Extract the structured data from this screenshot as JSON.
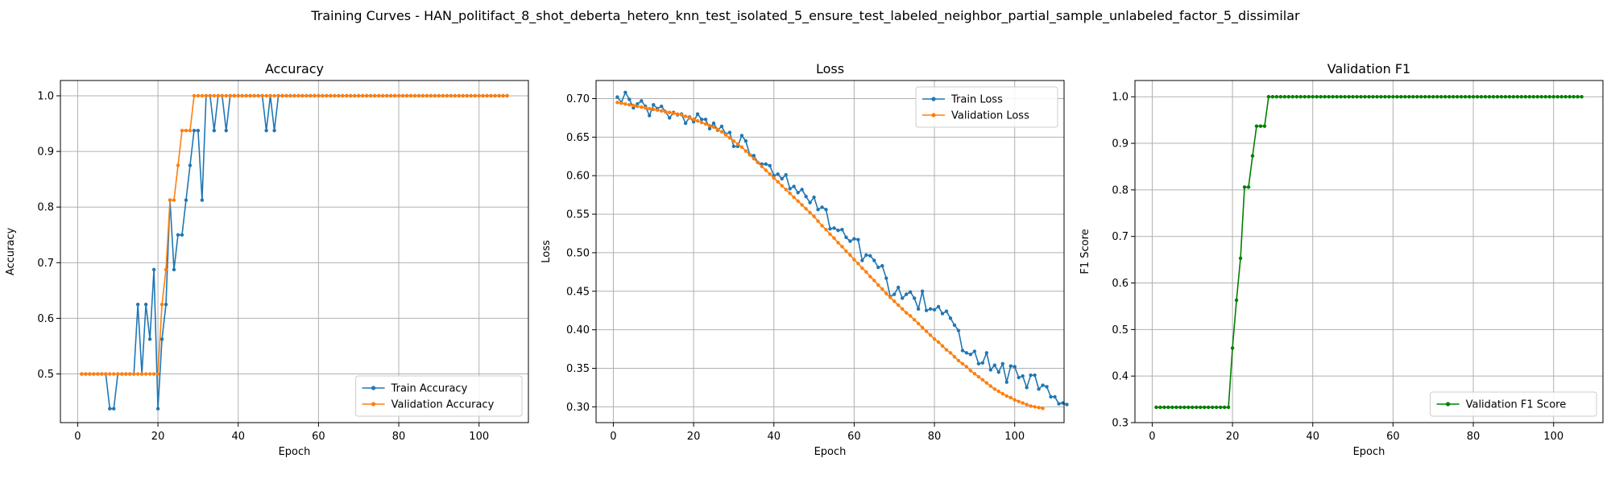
{
  "suptitle": "Training Curves - HAN_politifact_8_shot_deberta_hetero_knn_test_isolated_5_ensure_test_labeled_neighbor_partial_sample_unlabeled_factor_5_dissimilar",
  "colors": {
    "blue": "#1f77b4",
    "orange": "#ff7f0e",
    "green": "#008000",
    "grid": "#b0b0b0"
  },
  "chart_data": [
    {
      "type": "line",
      "title": "Accuracy",
      "xlabel": "Epoch",
      "ylabel": "Accuracy",
      "xlim": [
        -4.3,
        112.3
      ],
      "ylim": [
        0.4125,
        1.0275
      ],
      "xticks": [
        0,
        20,
        40,
        60,
        80,
        100
      ],
      "yticks": [
        0.5,
        0.6,
        0.7,
        0.8,
        0.9,
        1.0
      ],
      "ytick_labels": [
        "0.5",
        "0.6",
        "0.7",
        "0.8",
        "0.9",
        "1.0"
      ],
      "grid": true,
      "legend_position": "lower-right",
      "series": [
        {
          "name": "Train Accuracy",
          "color": "#1f77b4",
          "x_start": 1,
          "y": [
            0.5,
            0.5,
            0.5,
            0.5,
            0.5,
            0.5,
            0.5,
            0.4375,
            0.4375,
            0.5,
            0.5,
            0.5,
            0.5,
            0.5,
            0.625,
            0.5,
            0.625,
            0.5625,
            0.6875,
            0.4375,
            0.5625,
            0.625,
            0.8125,
            0.6875,
            0.75,
            0.75,
            0.8125,
            0.875,
            0.9375,
            0.9375,
            0.8125,
            1.0,
            1.0,
            0.9375,
            1.0,
            1.0,
            0.9375,
            1.0,
            1.0,
            1.0,
            1.0,
            1.0,
            1.0,
            1.0,
            1.0,
            1.0,
            0.9375,
            1.0,
            0.9375,
            1.0,
            1.0,
            1.0,
            1.0,
            1.0,
            1.0,
            1.0,
            1.0,
            1.0,
            1.0,
            1.0,
            1.0,
            1.0,
            1.0,
            1.0,
            1.0,
            1.0,
            1.0,
            1.0,
            1.0,
            1.0,
            1.0,
            1.0,
            1.0,
            1.0,
            1.0,
            1.0,
            1.0,
            1.0,
            1.0,
            1.0,
            1.0,
            1.0,
            1.0,
            1.0,
            1.0,
            1.0,
            1.0,
            1.0,
            1.0,
            1.0,
            1.0,
            1.0,
            1.0,
            1.0,
            1.0,
            1.0,
            1.0,
            1.0,
            1.0,
            1.0,
            1.0,
            1.0,
            1.0,
            1.0,
            1.0,
            1.0,
            1.0
          ]
        },
        {
          "name": "Validation Accuracy",
          "color": "#ff7f0e",
          "x_start": 1,
          "y": [
            0.5,
            0.5,
            0.5,
            0.5,
            0.5,
            0.5,
            0.5,
            0.5,
            0.5,
            0.5,
            0.5,
            0.5,
            0.5,
            0.5,
            0.5,
            0.5,
            0.5,
            0.5,
            0.5,
            0.5,
            0.625,
            0.6875,
            0.8125,
            0.8125,
            0.875,
            0.9375,
            0.9375,
            0.9375,
            1.0,
            1.0,
            1.0,
            1.0,
            1.0,
            1.0,
            1.0,
            1.0,
            1.0,
            1.0,
            1.0,
            1.0,
            1.0,
            1.0,
            1.0,
            1.0,
            1.0,
            1.0,
            1.0,
            1.0,
            1.0,
            1.0,
            1.0,
            1.0,
            1.0,
            1.0,
            1.0,
            1.0,
            1.0,
            1.0,
            1.0,
            1.0,
            1.0,
            1.0,
            1.0,
            1.0,
            1.0,
            1.0,
            1.0,
            1.0,
            1.0,
            1.0,
            1.0,
            1.0,
            1.0,
            1.0,
            1.0,
            1.0,
            1.0,
            1.0,
            1.0,
            1.0,
            1.0,
            1.0,
            1.0,
            1.0,
            1.0,
            1.0,
            1.0,
            1.0,
            1.0,
            1.0,
            1.0,
            1.0,
            1.0,
            1.0,
            1.0,
            1.0,
            1.0,
            1.0,
            1.0,
            1.0,
            1.0,
            1.0,
            1.0,
            1.0,
            1.0,
            1.0,
            1.0
          ]
        }
      ]
    },
    {
      "type": "line",
      "title": "Loss",
      "xlabel": "Epoch",
      "ylabel": "Loss",
      "xlim": [
        -4.3,
        112.3
      ],
      "ylim": [
        0.2795,
        0.7235
      ],
      "xticks": [
        0,
        20,
        40,
        60,
        80,
        100
      ],
      "yticks": [
        0.3,
        0.35,
        0.4,
        0.45,
        0.5,
        0.55,
        0.6,
        0.65,
        0.7
      ],
      "ytick_labels": [
        "0.30",
        "0.35",
        "0.40",
        "0.45",
        "0.50",
        "0.55",
        "0.60",
        "0.65",
        "0.70"
      ],
      "grid": true,
      "legend_position": "upper-right",
      "series": [
        {
          "name": "Train Loss",
          "color": "#1f77b4",
          "x_start": 1,
          "y": [
            0.702,
            0.695,
            0.708,
            0.699,
            0.688,
            0.693,
            0.697,
            0.69,
            0.678,
            0.692,
            0.687,
            0.69,
            0.683,
            0.675,
            0.682,
            0.679,
            0.68,
            0.668,
            0.676,
            0.67,
            0.68,
            0.673,
            0.673,
            0.661,
            0.668,
            0.659,
            0.664,
            0.654,
            0.656,
            0.638,
            0.638,
            0.652,
            0.645,
            0.627,
            0.626,
            0.617,
            0.615,
            0.615,
            0.613,
            0.6,
            0.602,
            0.596,
            0.601,
            0.583,
            0.586,
            0.578,
            0.582,
            0.573,
            0.565,
            0.572,
            0.556,
            0.559,
            0.556,
            0.531,
            0.532,
            0.529,
            0.53,
            0.52,
            0.515,
            0.518,
            0.517,
            0.49,
            0.497,
            0.496,
            0.49,
            0.481,
            0.483,
            0.467,
            0.443,
            0.446,
            0.455,
            0.441,
            0.446,
            0.449,
            0.441,
            0.427,
            0.45,
            0.425,
            0.427,
            0.426,
            0.43,
            0.421,
            0.424,
            0.415,
            0.406,
            0.399,
            0.373,
            0.37,
            0.368,
            0.372,
            0.356,
            0.357,
            0.37,
            0.348,
            0.354,
            0.345,
            0.356,
            0.332,
            0.353,
            0.352,
            0.338,
            0.34,
            0.325,
            0.341,
            0.341,
            0.323,
            0.328,
            0.326,
            0.313,
            0.313,
            0.304,
            0.305,
            0.303
          ]
        },
        {
          "name": "Validation Loss",
          "color": "#ff7f0e",
          "x_start": 1,
          "y": [
            0.695,
            0.694,
            0.693,
            0.692,
            0.691,
            0.69,
            0.689,
            0.688,
            0.687,
            0.686,
            0.685,
            0.684,
            0.683,
            0.682,
            0.681,
            0.68,
            0.679,
            0.677,
            0.675,
            0.673,
            0.671,
            0.669,
            0.667,
            0.665,
            0.663,
            0.66,
            0.657,
            0.653,
            0.649,
            0.645,
            0.641,
            0.637,
            0.632,
            0.627,
            0.622,
            0.617,
            0.612,
            0.607,
            0.602,
            0.597,
            0.592,
            0.587,
            0.582,
            0.577,
            0.572,
            0.567,
            0.562,
            0.557,
            0.552,
            0.547,
            0.541,
            0.535,
            0.53,
            0.524,
            0.519,
            0.513,
            0.508,
            0.502,
            0.497,
            0.491,
            0.486,
            0.48,
            0.475,
            0.469,
            0.464,
            0.458,
            0.453,
            0.447,
            0.442,
            0.437,
            0.432,
            0.427,
            0.422,
            0.418,
            0.413,
            0.408,
            0.403,
            0.398,
            0.393,
            0.388,
            0.384,
            0.379,
            0.374,
            0.37,
            0.365,
            0.36,
            0.356,
            0.352,
            0.347,
            0.343,
            0.339,
            0.335,
            0.331,
            0.327,
            0.323,
            0.32,
            0.317,
            0.314,
            0.312,
            0.309,
            0.307,
            0.305,
            0.303,
            0.301,
            0.3,
            0.299,
            0.298
          ]
        }
      ]
    },
    {
      "type": "line",
      "title": "Validation F1",
      "xlabel": "Epoch",
      "ylabel": "F1 Score",
      "xlim": [
        -4.3,
        112.3
      ],
      "ylim": [
        0.3,
        1.035
      ],
      "xticks": [
        0,
        20,
        40,
        60,
        80,
        100
      ],
      "yticks": [
        0.3,
        0.4,
        0.5,
        0.6,
        0.7,
        0.8,
        0.9,
        1.0
      ],
      "ytick_labels": [
        "0.3",
        "0.4",
        "0.5",
        "0.6",
        "0.7",
        "0.8",
        "0.9",
        "1.0"
      ],
      "grid": true,
      "legend_position": "lower-right",
      "series": [
        {
          "name": "Validation F1 Score",
          "color": "#008000",
          "x_start": 1,
          "y": [
            0.333,
            0.333,
            0.333,
            0.333,
            0.333,
            0.333,
            0.333,
            0.333,
            0.333,
            0.333,
            0.333,
            0.333,
            0.333,
            0.333,
            0.333,
            0.333,
            0.333,
            0.333,
            0.333,
            0.46,
            0.563,
            0.653,
            0.806,
            0.806,
            0.873,
            0.937,
            0.937,
            0.937,
            1.0,
            1.0,
            1.0,
            1.0,
            1.0,
            1.0,
            1.0,
            1.0,
            1.0,
            1.0,
            1.0,
            1.0,
            1.0,
            1.0,
            1.0,
            1.0,
            1.0,
            1.0,
            1.0,
            1.0,
            1.0,
            1.0,
            1.0,
            1.0,
            1.0,
            1.0,
            1.0,
            1.0,
            1.0,
            1.0,
            1.0,
            1.0,
            1.0,
            1.0,
            1.0,
            1.0,
            1.0,
            1.0,
            1.0,
            1.0,
            1.0,
            1.0,
            1.0,
            1.0,
            1.0,
            1.0,
            1.0,
            1.0,
            1.0,
            1.0,
            1.0,
            1.0,
            1.0,
            1.0,
            1.0,
            1.0,
            1.0,
            1.0,
            1.0,
            1.0,
            1.0,
            1.0,
            1.0,
            1.0,
            1.0,
            1.0,
            1.0,
            1.0,
            1.0,
            1.0,
            1.0,
            1.0,
            1.0,
            1.0,
            1.0,
            1.0,
            1.0,
            1.0,
            1.0
          ]
        }
      ]
    }
  ]
}
